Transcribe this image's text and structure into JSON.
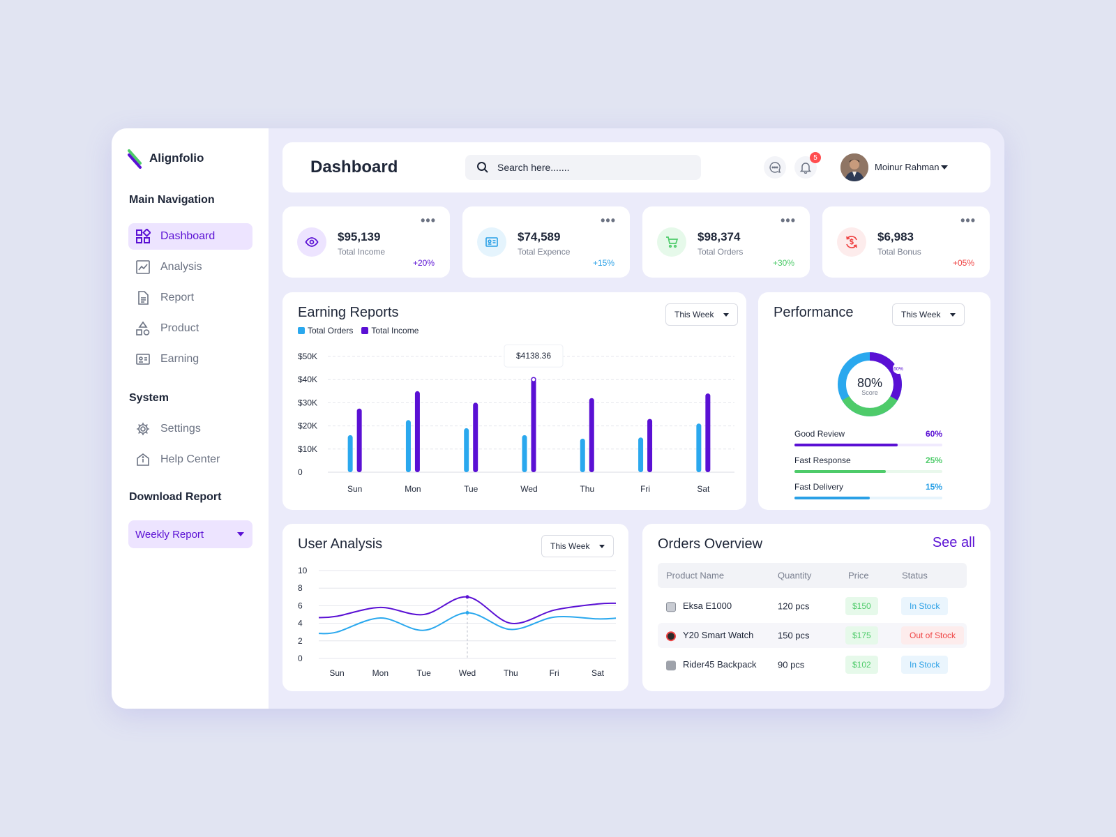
{
  "app": {
    "name": "Alignfolio"
  },
  "sidebar": {
    "main_nav_title": "Main Navigation",
    "items": [
      {
        "label": "Dashboard",
        "icon": "grid-icon",
        "active": true
      },
      {
        "label": "Analysis",
        "icon": "chart-icon"
      },
      {
        "label": "Report",
        "icon": "document-icon"
      },
      {
        "label": "Product",
        "icon": "shapes-icon"
      },
      {
        "label": "Earning",
        "icon": "id-card-icon"
      }
    ],
    "system_title": "System",
    "system_items": [
      {
        "label": "Settings",
        "icon": "gear-icon"
      },
      {
        "label": "Help Center",
        "icon": "help-center-icon"
      }
    ],
    "download_title": "Download Report",
    "download_select": "Weekly Report"
  },
  "header": {
    "title": "Dashboard",
    "search_placeholder": "Search here.......",
    "notification_count": "5",
    "user_name": "Moinur Rahman"
  },
  "stats": [
    {
      "value": "$95,139",
      "label": "Total Income",
      "change": "+20%",
      "color": "#5a10d4",
      "bg": "#ede4ff",
      "icon": "eye-icon"
    },
    {
      "value": "$74,589",
      "label": "Total Expence",
      "change": "+15%",
      "color": "#2aa0e6",
      "bg": "#e5f4fd",
      "icon": "id-card-icon"
    },
    {
      "value": "$98,374",
      "label": "Total Orders",
      "change": "+30%",
      "color": "#4ecb6a",
      "bg": "#e6f9ea",
      "icon": "cart-icon"
    },
    {
      "value": "$6,983",
      "label": "Total Bonus",
      "change": "+05%",
      "color": "#ef4444",
      "bg": "#fdecec",
      "icon": "money-refresh-icon"
    }
  ],
  "earning": {
    "title": "Earning Reports",
    "select": "This Week",
    "tooltip": "$4138.36"
  },
  "performance": {
    "title": "Performance",
    "select": "This Week",
    "score_value": "80%",
    "score_label": "Score",
    "segment_label": "60%",
    "items": [
      {
        "name": "Good Review",
        "pct": "60%",
        "value": 0.7,
        "color": "#5a10d4",
        "track": "#f0eafe"
      },
      {
        "name": "Fast Response",
        "pct": "25%",
        "value": 0.62,
        "color": "#4ecb6a",
        "track": "#e9f8ec"
      },
      {
        "name": "Fast Delivery",
        "pct": "15%",
        "value": 0.51,
        "color": "#2aa0e6",
        "track": "#e7f4fc"
      }
    ]
  },
  "user_analysis": {
    "title": "User Analysis",
    "select": "This Week"
  },
  "orders": {
    "title": "Orders Overview",
    "see_all": "See all",
    "headers": [
      "Product Name",
      "Quantity",
      "Price",
      "Status"
    ],
    "rows": [
      {
        "product": "Eksa E1000",
        "qty": "120 pcs",
        "price": "$150",
        "status": "In Stock",
        "status_kind": "in"
      },
      {
        "product": "Y20 Smart Watch",
        "qty": "150 pcs",
        "price": "$175",
        "status": "Out of Stock",
        "status_kind": "out"
      },
      {
        "product": "Rider45 Backpack",
        "qty": "90 pcs",
        "price": "$102",
        "status": "In Stock",
        "status_kind": "in"
      }
    ]
  },
  "chart_data": [
    {
      "type": "bar",
      "title": "Earning Reports",
      "categories": [
        "Sun",
        "Mon",
        "Tue",
        "Wed",
        "Thu",
        "Fri",
        "Sat"
      ],
      "series": [
        {
          "name": "Total Orders",
          "color": "#2aa8ee",
          "values": [
            16000,
            22500,
            19000,
            16000,
            14500,
            15000,
            21000
          ]
        },
        {
          "name": "Total Income",
          "color": "#5a10d4",
          "values": [
            27500,
            35000,
            30000,
            40000,
            32000,
            23000,
            34000
          ]
        }
      ],
      "ylim": [
        0,
        50000
      ],
      "yticks": [
        "0",
        "$10K",
        "$20K",
        "$30K",
        "$40K",
        "$50K"
      ],
      "legend": "top-left",
      "grid": true
    },
    {
      "type": "line",
      "title": "User Analysis",
      "categories": [
        "Sun",
        "Mon",
        "Tue",
        "Wed",
        "Thu",
        "Fri",
        "Sat"
      ],
      "series": [
        {
          "color": "#5a10d4",
          "values": [
            4.8,
            5.8,
            5.0,
            7.0,
            4.0,
            5.5,
            6.2
          ]
        },
        {
          "color": "#2aa8ee",
          "values": [
            3.0,
            4.6,
            3.2,
            5.2,
            3.3,
            4.7,
            4.5
          ]
        }
      ],
      "ylim": [
        0,
        10
      ],
      "yticks": [
        "0",
        "2",
        "4",
        "6",
        "8",
        "10"
      ],
      "grid": true
    }
  ]
}
